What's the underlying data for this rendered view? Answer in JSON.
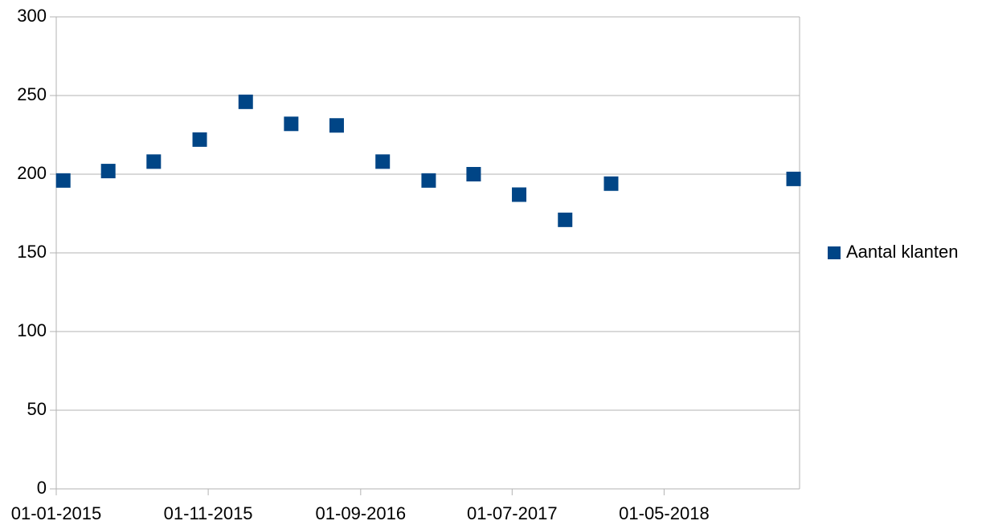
{
  "chart_data": {
    "type": "scatter",
    "x": [
      "2015-01-15",
      "2015-04-15",
      "2015-07-15",
      "2015-10-15",
      "2016-01-15",
      "2016-04-15",
      "2016-07-15",
      "2016-10-15",
      "2017-01-15",
      "2017-04-15",
      "2017-07-15",
      "2017-10-15",
      "2018-01-15",
      "2019-01-15"
    ],
    "series": [
      {
        "name": "Aantal klanten",
        "color": "#004586",
        "values": [
          196,
          202,
          208,
          222,
          246,
          232,
          231,
          208,
          196,
          200,
          187,
          171,
          194,
          197
        ]
      }
    ],
    "xlim": [
      "2015-01-01",
      "2019-01-27"
    ],
    "xticks": [
      {
        "value": "2015-01-01",
        "label": "01-01-2015"
      },
      {
        "value": "2015-11-01",
        "label": "01-11-2015"
      },
      {
        "value": "2016-09-01",
        "label": "01-09-2016"
      },
      {
        "value": "2017-07-01",
        "label": "01-07-2017"
      },
      {
        "value": "2018-05-01",
        "label": "01-05-2018"
      }
    ],
    "ylim": [
      0,
      300
    ],
    "yticks": [
      0,
      50,
      100,
      150,
      200,
      250,
      300
    ],
    "grid": true,
    "legend": "right"
  }
}
